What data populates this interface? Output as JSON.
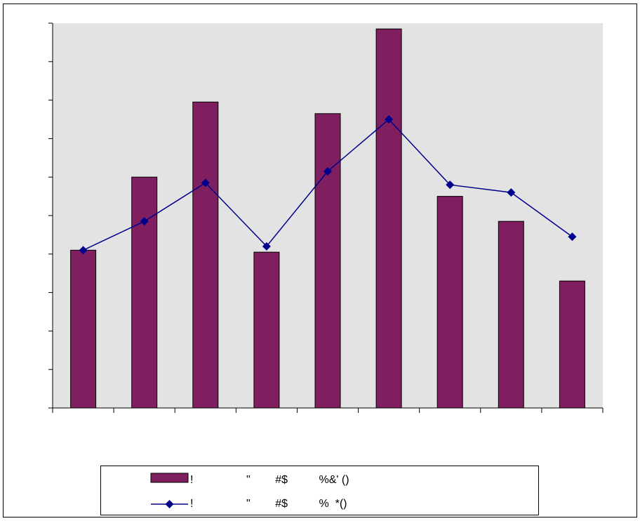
{
  "colors": {
    "bar": "#7F1F5F",
    "line": "#00008B",
    "plot_background": "#E3E3E3",
    "frame": "#000000"
  },
  "chart_data": {
    "type": "bar",
    "title": "",
    "xlabel": "",
    "ylabel": "",
    "categories": [
      "",
      "",
      "",
      "",
      "",
      "",
      "",
      "",
      ""
    ],
    "ylim": [
      0,
      10
    ],
    "grid": false,
    "legend_position": "bottom",
    "series": [
      {
        "name": "!                 \"        #$          %&' ()",
        "type": "bar",
        "values": [
          4.1,
          6.0,
          7.95,
          4.05,
          7.65,
          9.85,
          5.5,
          4.85,
          3.3
        ]
      },
      {
        "name": "!                 \"        #$          %  *()",
        "type": "line",
        "marker": "diamond",
        "values": [
          4.1,
          4.85,
          5.85,
          4.2,
          6.15,
          7.5,
          5.8,
          5.6,
          4.45
        ]
      }
    ]
  }
}
